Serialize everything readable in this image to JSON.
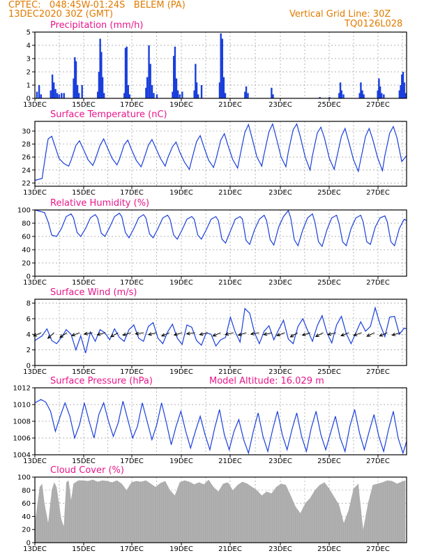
{
  "header": {
    "line1_left": "CPTEC:   048:45W-01:24S   BELEM (PA)",
    "line2_left": "13DEC2020 30Z (GMT)",
    "line1_right": "Vertical Grid Line: 30Z",
    "line2_right": "TQ0126L028"
  },
  "colors": {
    "title": "#e8168b",
    "header": "#e07b00",
    "series": "#1a3fdc",
    "cloud": "#a9a9a9",
    "wind_arrow": "#000000",
    "grid": "#999999"
  },
  "chart_data": [
    {
      "type": "bar",
      "title": "Precipitation (mm/h)",
      "x_ticks": [
        "13DEC",
        "15DEC",
        "17DEC",
        "19DEC",
        "21DEC",
        "23DEC",
        "25DEC",
        "27DEC"
      ],
      "x_range_days": [
        0,
        15.4
      ],
      "ylim": [
        0,
        5
      ],
      "y_ticks": [
        "0",
        "1",
        "2",
        "3",
        "4",
        "5"
      ],
      "grid": true,
      "points": [
        [
          0.08,
          0.5
        ],
        [
          0.17,
          1.0
        ],
        [
          0.25,
          0.3
        ],
        [
          0.65,
          0.6
        ],
        [
          0.72,
          1.8
        ],
        [
          0.78,
          1.2
        ],
        [
          0.85,
          0.7
        ],
        [
          0.92,
          0.4
        ],
        [
          1.0,
          0.3
        ],
        [
          1.1,
          0.4
        ],
        [
          1.2,
          0.4
        ],
        [
          1.6,
          1.5
        ],
        [
          1.65,
          3.1
        ],
        [
          1.7,
          2.8
        ],
        [
          1.76,
          1.0
        ],
        [
          1.82,
          0.4
        ],
        [
          1.95,
          1.0
        ],
        [
          2.6,
          0.5
        ],
        [
          2.65,
          2.0
        ],
        [
          2.7,
          4.5
        ],
        [
          2.75,
          3.5
        ],
        [
          2.8,
          1.6
        ],
        [
          2.86,
          0.4
        ],
        [
          3.7,
          0.4
        ],
        [
          3.75,
          3.8
        ],
        [
          3.8,
          3.9
        ],
        [
          3.86,
          1.0
        ],
        [
          3.92,
          0.3
        ],
        [
          4.6,
          0.8
        ],
        [
          4.65,
          1.6
        ],
        [
          4.72,
          4.0
        ],
        [
          4.78,
          2.6
        ],
        [
          4.85,
          1.0
        ],
        [
          4.92,
          0.4
        ],
        [
          5.05,
          0.3
        ],
        [
          5.7,
          0.5
        ],
        [
          5.75,
          3.2
        ],
        [
          5.8,
          3.9
        ],
        [
          5.86,
          1.5
        ],
        [
          5.92,
          0.6
        ],
        [
          6.0,
          0.3
        ],
        [
          6.1,
          0.5
        ],
        [
          6.6,
          0.6
        ],
        [
          6.65,
          2.6
        ],
        [
          6.7,
          1.2
        ],
        [
          6.76,
          0.3
        ],
        [
          6.9,
          1.0
        ],
        [
          7.65,
          1.2
        ],
        [
          7.7,
          4.9
        ],
        [
          7.76,
          4.5
        ],
        [
          7.82,
          1.6
        ],
        [
          7.88,
          0.4
        ],
        [
          8.7,
          0.5
        ],
        [
          8.75,
          0.9
        ],
        [
          8.82,
          0.4
        ],
        [
          9.8,
          0.8
        ],
        [
          9.86,
          0.3
        ],
        [
          11.8,
          0.1
        ],
        [
          12.2,
          0.1
        ],
        [
          12.6,
          0.4
        ],
        [
          12.65,
          1.2
        ],
        [
          12.7,
          0.6
        ],
        [
          12.78,
          0.3
        ],
        [
          13.45,
          0.4
        ],
        [
          13.5,
          1.2
        ],
        [
          13.56,
          0.6
        ],
        [
          13.62,
          0.3
        ],
        [
          14.2,
          0.6
        ],
        [
          14.25,
          1.5
        ],
        [
          14.3,
          0.9
        ],
        [
          14.36,
          0.4
        ],
        [
          14.45,
          0.3
        ],
        [
          15.1,
          0.6
        ],
        [
          15.15,
          1.0
        ],
        [
          15.2,
          1.8
        ],
        [
          15.25,
          2.0
        ],
        [
          15.3,
          1.2
        ],
        [
          15.35,
          0.4
        ]
      ]
    },
    {
      "type": "line",
      "title": "Surface Temperature (nC)",
      "x_ticks": [
        "13DEC",
        "15DEC",
        "17DEC",
        "19DEC",
        "21DEC",
        "23DEC",
        "25DEC",
        "27DEC"
      ],
      "x_range_days": [
        0,
        15.4
      ],
      "ylim": [
        21.5,
        31.5
      ],
      "y_ticks": [
        "22",
        "24",
        "26",
        "28",
        "30"
      ],
      "grid": true,
      "x": [
        0,
        0.3,
        0.45,
        0.55,
        0.7,
        0.85,
        1.0,
        1.2,
        1.4,
        1.5,
        1.7,
        1.85,
        2.0,
        2.2,
        2.4,
        2.5,
        2.7,
        2.85,
        3.0,
        3.2,
        3.4,
        3.5,
        3.7,
        3.85,
        4.0,
        4.2,
        4.4,
        4.5,
        4.7,
        4.85,
        5.0,
        5.2,
        5.4,
        5.5,
        5.7,
        5.85,
        6.0,
        6.2,
        6.4,
        6.5,
        6.7,
        6.85,
        7.0,
        7.2,
        7.4,
        7.5,
        7.7,
        7.85,
        8.0,
        8.2,
        8.4,
        8.5,
        8.7,
        8.85,
        9.0,
        9.2,
        9.4,
        9.5,
        9.7,
        9.85,
        10.0,
        10.2,
        10.4,
        10.5,
        10.7,
        10.85,
        11.0,
        11.2,
        11.4,
        11.5,
        11.7,
        11.85,
        12.0,
        12.2,
        12.4,
        12.5,
        12.7,
        12.85,
        13.0,
        13.2,
        13.4,
        13.5,
        13.7,
        13.85,
        14.0,
        14.2,
        14.4,
        14.5,
        14.7,
        14.85,
        15.0,
        15.2,
        15.4
      ],
      "y": [
        22.4,
        22.7,
        26.5,
        28.8,
        29.2,
        27.5,
        25.8,
        25.0,
        24.6,
        25.5,
        27.8,
        28.5,
        27.3,
        25.6,
        24.7,
        25.6,
        27.8,
        28.8,
        27.5,
        25.8,
        24.8,
        25.6,
        27.9,
        28.6,
        27.2,
        25.5,
        24.5,
        25.5,
        27.8,
        28.7,
        27.5,
        25.8,
        24.6,
        25.8,
        27.6,
        28.3,
        26.8,
        25.2,
        24.1,
        25.6,
        28.4,
        29.3,
        27.6,
        25.5,
        24.4,
        25.6,
        28.6,
        29.6,
        27.8,
        25.6,
        24.3,
        26.2,
        29.8,
        31.0,
        28.9,
        26.0,
        24.6,
        26.5,
        29.9,
        31.1,
        29.0,
        26.0,
        24.5,
        26.8,
        30.2,
        31.1,
        29.1,
        26.0,
        24.0,
        26.2,
        29.7,
        30.6,
        28.9,
        25.8,
        24.1,
        25.8,
        29.2,
        30.4,
        28.4,
        25.6,
        23.8,
        25.6,
        29.2,
        30.4,
        28.7,
        25.9,
        23.9,
        26.2,
        29.7,
        30.7,
        29.0,
        25.3,
        26.2
      ]
    },
    {
      "type": "line",
      "title": "Relative Humidity (%)",
      "x_ticks": [
        "13DEC",
        "15DEC",
        "17DEC",
        "19DEC",
        "21DEC",
        "23DEC",
        "25DEC",
        "27DEC"
      ],
      "x_range_days": [
        0,
        15.4
      ],
      "ylim": [
        0,
        100
      ],
      "y_ticks": [
        "0",
        "20",
        "40",
        "60",
        "80",
        "100"
      ],
      "grid": true,
      "x": [
        0,
        0.2,
        0.4,
        0.55,
        0.7,
        0.9,
        1.1,
        1.3,
        1.5,
        1.6,
        1.75,
        1.9,
        2.1,
        2.3,
        2.5,
        2.6,
        2.75,
        2.9,
        3.1,
        3.3,
        3.5,
        3.6,
        3.75,
        3.9,
        4.1,
        4.3,
        4.5,
        4.6,
        4.75,
        4.9,
        5.1,
        5.3,
        5.5,
        5.6,
        5.75,
        5.9,
        6.1,
        6.3,
        6.5,
        6.6,
        6.75,
        6.9,
        7.1,
        7.3,
        7.5,
        7.6,
        7.75,
        7.9,
        8.1,
        8.3,
        8.5,
        8.6,
        8.75,
        8.9,
        9.1,
        9.3,
        9.5,
        9.6,
        9.75,
        9.9,
        10.1,
        10.3,
        10.5,
        10.6,
        10.75,
        10.9,
        11.1,
        11.3,
        11.5,
        11.6,
        11.75,
        11.9,
        12.1,
        12.3,
        12.5,
        12.6,
        12.75,
        12.9,
        13.1,
        13.3,
        13.5,
        13.6,
        13.75,
        13.9,
        14.1,
        14.3,
        14.5,
        14.6,
        14.75,
        14.9,
        15.1,
        15.3,
        15.4
      ],
      "y": [
        100,
        98,
        96,
        82,
        62,
        60,
        72,
        90,
        94,
        88,
        66,
        60,
        72,
        88,
        93,
        88,
        65,
        60,
        74,
        90,
        95,
        90,
        66,
        58,
        72,
        88,
        93,
        88,
        64,
        58,
        72,
        88,
        92,
        86,
        62,
        56,
        70,
        86,
        90,
        86,
        62,
        56,
        70,
        86,
        90,
        84,
        56,
        50,
        68,
        86,
        90,
        86,
        54,
        48,
        70,
        86,
        92,
        84,
        55,
        47,
        74,
        90,
        99,
        88,
        55,
        46,
        70,
        88,
        94,
        82,
        52,
        45,
        70,
        88,
        92,
        80,
        52,
        46,
        72,
        88,
        92,
        82,
        52,
        48,
        74,
        88,
        91,
        82,
        52,
        46,
        72,
        86,
        84
      ]
    },
    {
      "type": "line",
      "title": "Surface Wind (m/s)",
      "x_ticks": [
        "13DEC",
        "15DEC",
        "17DEC",
        "19DEC",
        "21DEC",
        "23DEC",
        "25DEC",
        "27DEC"
      ],
      "x_range_days": [
        0,
        15.4
      ],
      "ylim": [
        0,
        8.5
      ],
      "y_ticks": [
        "0",
        "2",
        "4",
        "6",
        "8"
      ],
      "grid": true,
      "x": [
        0,
        0.3,
        0.5,
        0.7,
        0.9,
        1.1,
        1.3,
        1.5,
        1.7,
        1.9,
        2.1,
        2.3,
        2.5,
        2.7,
        2.9,
        3.1,
        3.3,
        3.5,
        3.7,
        3.9,
        4.1,
        4.3,
        4.5,
        4.7,
        4.9,
        5.1,
        5.3,
        5.5,
        5.7,
        5.9,
        6.1,
        6.3,
        6.5,
        6.7,
        6.9,
        7.1,
        7.3,
        7.5,
        7.7,
        7.9,
        8.1,
        8.3,
        8.5,
        8.7,
        8.9,
        9.1,
        9.3,
        9.5,
        9.7,
        9.9,
        10.1,
        10.3,
        10.5,
        10.7,
        10.9,
        11.1,
        11.3,
        11.5,
        11.7,
        11.9,
        12.1,
        12.3,
        12.5,
        12.7,
        12.9,
        13.1,
        13.3,
        13.5,
        13.7,
        13.9,
        14.1,
        14.3,
        14.5,
        14.7,
        14.9,
        15.1,
        15.3,
        15.4
      ],
      "y": [
        3.2,
        3.8,
        4.7,
        3.2,
        2.8,
        3.6,
        4.6,
        4.0,
        2.0,
        3.8,
        1.6,
        4.3,
        3.1,
        4.6,
        4.2,
        3.3,
        4.7,
        3.6,
        3.1,
        4.6,
        5.2,
        3.5,
        3.1,
        5.0,
        5.5,
        3.5,
        2.8,
        4.3,
        5.3,
        3.5,
        2.7,
        5.2,
        4.9,
        3.2,
        2.6,
        4.2,
        4.0,
        2.5,
        3.3,
        3.6,
        6.2,
        4.3,
        3.0,
        7.3,
        6.7,
        4.2,
        2.8,
        4.4,
        5.1,
        3.3,
        4.6,
        5.8,
        3.4,
        2.8,
        5.0,
        6.0,
        4.5,
        3.1,
        5.1,
        6.4,
        4.2,
        2.9,
        5.2,
        6.3,
        4.1,
        2.8,
        4.2,
        5.6,
        4.4,
        5.0,
        7.4,
        5.3,
        3.7,
        6.2,
        6.3,
        4.0,
        4.8,
        4.7
      ],
      "vectors_u": [
        -1.2,
        -1.0,
        -0.9,
        -1.1,
        -1.3,
        -1.2,
        -1.1,
        -1.3,
        -1.4,
        -1.3,
        -1.2,
        -1.4,
        -1.5,
        -1.3,
        -1.2,
        -1.4,
        -1.3,
        -1.2,
        -1.3,
        -1.4,
        -1.2,
        -1.3,
        -1.2,
        -1.4,
        -1.3,
        -1.2,
        -1.3,
        -1.2,
        -1.3
      ],
      "vectors_v": [
        -0.5,
        -0.9,
        -0.6,
        -0.4,
        -0.2,
        -0.3,
        -0.6,
        -0.4,
        -0.2,
        -0.3,
        -0.5,
        -0.4,
        -0.2,
        -0.3,
        -0.5,
        -0.3,
        -0.4,
        -0.2,
        -0.3,
        -0.5,
        -0.7,
        -0.4,
        -0.6,
        -0.3,
        -0.5,
        -0.4,
        -0.6,
        -0.5,
        -0.4
      ]
    },
    {
      "type": "line",
      "title": "Surface Pressure (hPa)",
      "annotation": "Model Altitude: 16.029 m",
      "x_ticks": [
        "13DEC",
        "15DEC",
        "17DEC",
        "19DEC",
        "21DEC",
        "23DEC",
        "25DEC",
        "27DEC"
      ],
      "x_range_days": [
        0,
        15.4
      ],
      "ylim": [
        1004,
        1012
      ],
      "y_ticks": [
        "1004",
        "1006",
        "1008",
        "1010",
        "1012"
      ],
      "grid": true,
      "x": [
        0,
        0.25,
        0.45,
        0.65,
        0.85,
        1.05,
        1.25,
        1.45,
        1.65,
        1.85,
        2.05,
        2.25,
        2.45,
        2.65,
        2.85,
        3.05,
        3.25,
        3.45,
        3.65,
        3.85,
        4.05,
        4.25,
        4.45,
        4.65,
        4.85,
        5.05,
        5.25,
        5.45,
        5.65,
        5.85,
        6.05,
        6.25,
        6.45,
        6.65,
        6.85,
        7.05,
        7.25,
        7.45,
        7.65,
        7.85,
        8.05,
        8.25,
        8.45,
        8.65,
        8.85,
        9.05,
        9.25,
        9.45,
        9.65,
        9.85,
        10.05,
        10.25,
        10.45,
        10.65,
        10.85,
        11.05,
        11.25,
        11.45,
        11.65,
        11.85,
        12.05,
        12.25,
        12.45,
        12.65,
        12.85,
        13.05,
        13.25,
        13.45,
        13.65,
        13.85,
        14.05,
        14.25,
        14.45,
        14.65,
        14.85,
        15.05,
        15.25,
        15.4
      ],
      "y": [
        1010.2,
        1010.6,
        1010.3,
        1009.2,
        1006.8,
        1008.6,
        1010.2,
        1008.6,
        1006.0,
        1007.6,
        1010.2,
        1008.0,
        1006.0,
        1008.8,
        1010.2,
        1008.0,
        1006.2,
        1007.8,
        1010.4,
        1008.2,
        1006.0,
        1007.4,
        1010.2,
        1008.0,
        1005.8,
        1007.6,
        1010.2,
        1007.8,
        1005.2,
        1007.4,
        1009.2,
        1006.8,
        1004.8,
        1006.8,
        1008.6,
        1006.4,
        1004.6,
        1007.2,
        1009.4,
        1006.4,
        1004.6,
        1006.8,
        1008.2,
        1005.8,
        1004.2,
        1006.8,
        1009.0,
        1006.2,
        1004.4,
        1007.0,
        1009.2,
        1006.4,
        1004.6,
        1007.0,
        1009.0,
        1006.2,
        1004.4,
        1007.2,
        1009.2,
        1006.4,
        1004.6,
        1006.6,
        1008.6,
        1006.0,
        1004.4,
        1007.4,
        1009.4,
        1006.6,
        1004.6,
        1006.8,
        1008.8,
        1006.2,
        1004.4,
        1007.0,
        1009.2,
        1006.0,
        1004.2,
        1005.6
      ]
    },
    {
      "type": "bar",
      "title": "Cloud Cover (%)",
      "x_ticks": [
        "13DEC",
        "15DEC",
        "17DEC",
        "19DEC",
        "21DEC",
        "23DEC",
        "25DEC",
        "27DEC"
      ],
      "x_range_days": [
        0,
        15.4
      ],
      "ylim": [
        0,
        100
      ],
      "y_ticks": [
        "0",
        "20",
        "40",
        "60",
        "80",
        "100"
      ],
      "grid": true,
      "x": [
        0,
        0.2,
        0.3,
        0.4,
        0.55,
        0.7,
        0.8,
        0.9,
        1.0,
        1.1,
        1.2,
        1.3,
        1.4,
        1.5,
        1.6,
        1.8,
        2.0,
        2.2,
        2.4,
        2.6,
        2.8,
        3.0,
        3.2,
        3.4,
        3.6,
        3.8,
        4.0,
        4.2,
        4.4,
        4.6,
        4.8,
        5.0,
        5.2,
        5.4,
        5.6,
        5.8,
        6.0,
        6.2,
        6.4,
        6.6,
        6.8,
        7.0,
        7.2,
        7.4,
        7.6,
        7.8,
        8.0,
        8.2,
        8.4,
        8.6,
        8.8,
        9.0,
        9.2,
        9.4,
        9.6,
        9.8,
        10.0,
        10.2,
        10.4,
        10.6,
        10.8,
        11.0,
        11.2,
        11.4,
        11.6,
        11.8,
        12.0,
        12.2,
        12.4,
        12.6,
        12.8,
        13.0,
        13.2,
        13.4,
        13.6,
        13.8,
        14.0,
        14.2,
        14.4,
        14.6,
        14.8,
        15.0,
        15.2,
        15.35
      ],
      "y": [
        30,
        85,
        90,
        60,
        30,
        80,
        92,
        85,
        60,
        35,
        25,
        92,
        95,
        65,
        90,
        95,
        95,
        94,
        96,
        93,
        95,
        94,
        92,
        95,
        90,
        80,
        92,
        94,
        93,
        95,
        90,
        85,
        91,
        94,
        80,
        72,
        92,
        95,
        93,
        89,
        92,
        89,
        96,
        85,
        78,
        90,
        92,
        80,
        88,
        93,
        90,
        85,
        80,
        72,
        78,
        75,
        85,
        90,
        88,
        72,
        55,
        45,
        60,
        68,
        80,
        88,
        92,
        82,
        70,
        58,
        30,
        50,
        82,
        90,
        20,
        60,
        88,
        90,
        92,
        95,
        94,
        90,
        93,
        95
      ]
    }
  ]
}
